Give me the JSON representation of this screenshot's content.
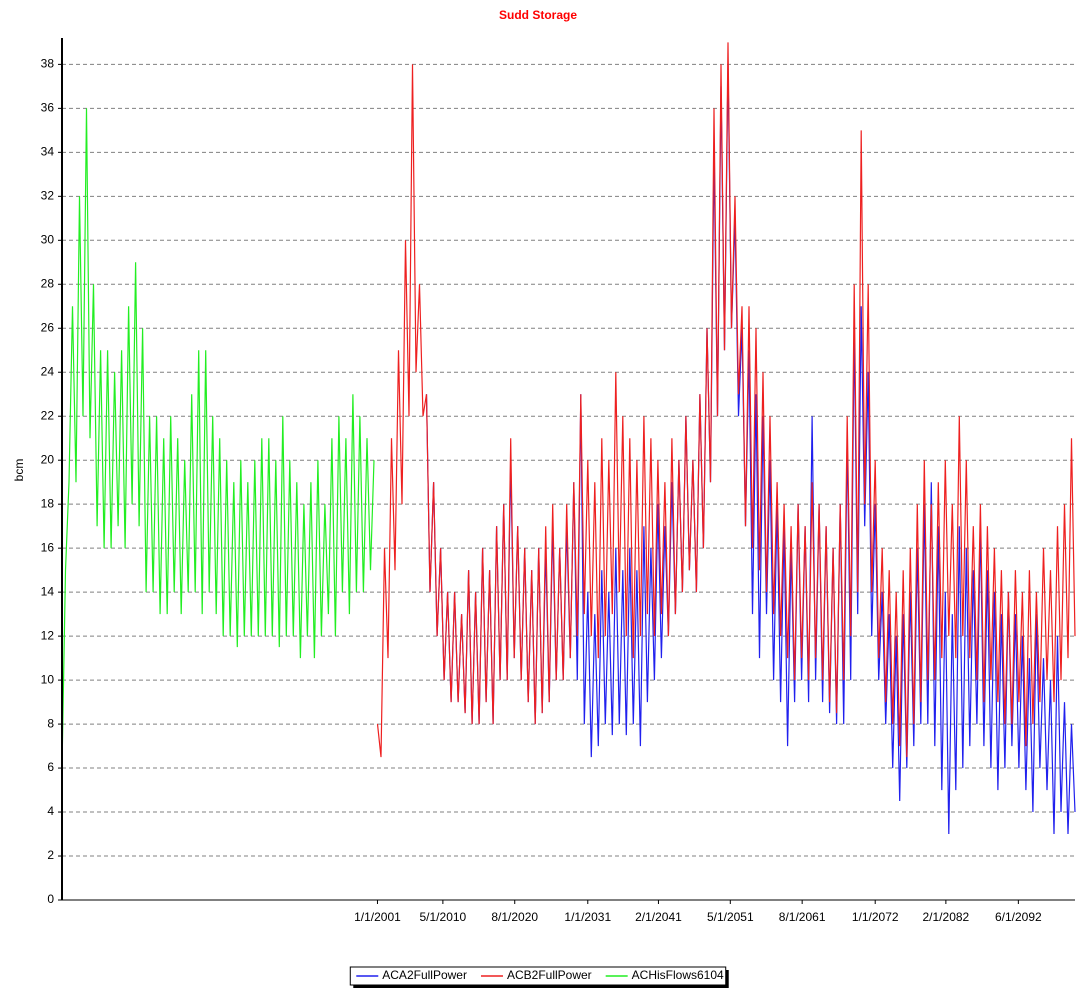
{
  "chart_data": {
    "type": "line",
    "title": "Sudd Storage",
    "y_label": "bcm",
    "title_color": "#ff0000",
    "x": [
      1956,
      1956.5,
      1957,
      1957.5,
      1958,
      1958.5,
      1959,
      1959.5,
      1960,
      1960.5,
      1961,
      1961.5,
      1962,
      1962.5,
      1963,
      1963.5,
      1964,
      1964.5,
      1965,
      1965.5,
      1966,
      1966.5,
      1967,
      1967.5,
      1968,
      1968.5,
      1969,
      1969.5,
      1970,
      1970.5,
      1971,
      1971.5,
      1972,
      1972.5,
      1973,
      1973.5,
      1974,
      1974.5,
      1975,
      1975.5,
      1976,
      1976.5,
      1977,
      1977.5,
      1978,
      1978.5,
      1979,
      1979.5,
      1980,
      1980.5,
      1981,
      1981.5,
      1982,
      1982.5,
      1983,
      1983.5,
      1984,
      1984.5,
      1985,
      1985.5,
      1986,
      1986.5,
      1987,
      1987.5,
      1988,
      1988.5,
      1989,
      1989.5,
      1990,
      1990.5,
      1991,
      1991.5,
      1992,
      1992.5,
      1993,
      1993.5,
      1994,
      1994.5,
      1995,
      1995.5,
      1996,
      1996.5,
      1997,
      1997.5,
      1998,
      1998.5,
      1999,
      1999.5,
      2000,
      2000.5,
      2001,
      2001.5,
      2002,
      2002.5,
      2003,
      2003.5,
      2004,
      2004.5,
      2005,
      2005.5,
      2006,
      2006.5,
      2007,
      2007.5,
      2008,
      2008.5,
      2009,
      2009.5,
      2010,
      2010.5,
      2011,
      2011.5,
      2012,
      2012.5,
      2013,
      2013.5,
      2014,
      2014.5,
      2015,
      2015.5,
      2016,
      2016.5,
      2017,
      2017.5,
      2018,
      2018.5,
      2019,
      2019.5,
      2020,
      2020.5,
      2021,
      2021.5,
      2022,
      2022.5,
      2023,
      2023.5,
      2024,
      2024.5,
      2025,
      2025.5,
      2026,
      2026.5,
      2027,
      2027.5,
      2028,
      2028.5,
      2029,
      2029.5,
      2030,
      2030.5,
      2031,
      2031.5,
      2032,
      2032.5,
      2033,
      2033.5,
      2034,
      2034.5,
      2035,
      2035.5,
      2036,
      2036.5,
      2037,
      2037.5,
      2038,
      2038.5,
      2039,
      2039.5,
      2040,
      2040.5,
      2041,
      2041.5,
      2042,
      2042.5,
      2043,
      2043.5,
      2044,
      2044.5,
      2045,
      2045.5,
      2046,
      2046.5,
      2047,
      2047.5,
      2048,
      2048.5,
      2049,
      2049.5,
      2050,
      2050.5,
      2051,
      2051.5,
      2052,
      2052.5,
      2053,
      2053.5,
      2054,
      2054.5,
      2055,
      2055.5,
      2056,
      2056.5,
      2057,
      2057.5,
      2058,
      2058.5,
      2059,
      2059.5,
      2060,
      2060.5,
      2061,
      2061.5,
      2062,
      2062.5,
      2063,
      2063.5,
      2064,
      2064.5,
      2065,
      2065.5,
      2066,
      2066.5,
      2067,
      2067.5,
      2068,
      2068.5,
      2069,
      2069.5,
      2070,
      2070.5,
      2071,
      2071.5,
      2072,
      2072.5,
      2073,
      2073.5,
      2074,
      2074.5,
      2075,
      2075.5,
      2076,
      2076.5,
      2077,
      2077.5,
      2078,
      2078.5,
      2079,
      2079.5,
      2080,
      2080.5,
      2081,
      2081.5,
      2082,
      2082.5,
      2083,
      2083.5,
      2084,
      2084.5,
      2085,
      2085.5,
      2086,
      2086.5,
      2087,
      2087.5,
      2088,
      2088.5,
      2089,
      2089.5,
      2090,
      2090.5,
      2091,
      2091.5,
      2092,
      2092.5,
      2093,
      2093.5,
      2094,
      2094.5,
      2095,
      2095.5,
      2096,
      2096.5,
      2097,
      2097.5,
      2098,
      2098.5,
      2099,
      2099.5,
      2100,
      2100.5
    ],
    "series": [
      {
        "name": "ACA2FullPower",
        "color": "#2020ee",
        "values": [
          null,
          null,
          null,
          null,
          null,
          null,
          null,
          null,
          null,
          null,
          null,
          null,
          null,
          null,
          null,
          null,
          null,
          null,
          null,
          null,
          null,
          null,
          null,
          null,
          null,
          null,
          null,
          null,
          null,
          null,
          null,
          null,
          null,
          null,
          null,
          null,
          null,
          null,
          null,
          null,
          null,
          null,
          null,
          null,
          null,
          null,
          null,
          null,
          null,
          null,
          null,
          null,
          null,
          null,
          null,
          null,
          null,
          null,
          null,
          null,
          null,
          null,
          null,
          null,
          null,
          null,
          null,
          null,
          null,
          null,
          null,
          null,
          null,
          null,
          null,
          null,
          null,
          null,
          null,
          null,
          null,
          null,
          null,
          null,
          null,
          null,
          null,
          null,
          null,
          null,
          null,
          null,
          null,
          null,
          null,
          null,
          null,
          null,
          null,
          null,
          null,
          null,
          null,
          null,
          23,
          14,
          19,
          12,
          16,
          10,
          14,
          9,
          14,
          9,
          13,
          8.5,
          15,
          8,
          14,
          8,
          16,
          9,
          15,
          8,
          17,
          10,
          18,
          10,
          20,
          11,
          17,
          10,
          16,
          9,
          15,
          8,
          16,
          8.5,
          16,
          9,
          17,
          10,
          16,
          10,
          17,
          11,
          19,
          10,
          23,
          8,
          14,
          6.5,
          13,
          7,
          15,
          8,
          14,
          7.5,
          16,
          8,
          15,
          7.5,
          16,
          8,
          15,
          7,
          17,
          9,
          16,
          10,
          18,
          11,
          17,
          12,
          19,
          13,
          20,
          14,
          22,
          15,
          20,
          14,
          23,
          16,
          26,
          19,
          34,
          22,
          37,
          25,
          38,
          26,
          31,
          22,
          26,
          17,
          25,
          13,
          23,
          11,
          22,
          13,
          20,
          10,
          18,
          9,
          17,
          7,
          16,
          9,
          18,
          10,
          17,
          9,
          22,
          10,
          18,
          9,
          17,
          8.5,
          16,
          8,
          18,
          8,
          21,
          10,
          26,
          13,
          27,
          17,
          24,
          12,
          18,
          10,
          14,
          8,
          13,
          6,
          12,
          4.5,
          13,
          6,
          14,
          7,
          16,
          8,
          18,
          8,
          19,
          7,
          17,
          5,
          14,
          3,
          13,
          5,
          17,
          6,
          16,
          7,
          15,
          8,
          17,
          7,
          15,
          6,
          14,
          5,
          13,
          6,
          14,
          7,
          13,
          6,
          12,
          5,
          11,
          4,
          13,
          6,
          11,
          5,
          10,
          3,
          12,
          4,
          9,
          3,
          8,
          4
        ]
      },
      {
        "name": "ACB2FullPower",
        "color": "#ee2020",
        "values": [
          null,
          null,
          null,
          null,
          null,
          null,
          null,
          null,
          null,
          null,
          null,
          null,
          null,
          null,
          null,
          null,
          null,
          null,
          null,
          null,
          null,
          null,
          null,
          null,
          null,
          null,
          null,
          null,
          null,
          null,
          null,
          null,
          null,
          null,
          null,
          null,
          null,
          null,
          null,
          null,
          null,
          null,
          null,
          null,
          null,
          null,
          null,
          null,
          null,
          null,
          null,
          null,
          null,
          null,
          null,
          null,
          null,
          null,
          null,
          null,
          null,
          null,
          null,
          null,
          null,
          null,
          null,
          null,
          null,
          null,
          null,
          null,
          null,
          null,
          null,
          null,
          null,
          null,
          null,
          null,
          null,
          null,
          null,
          null,
          null,
          null,
          null,
          null,
          null,
          null,
          8,
          6.5,
          16,
          11,
          21,
          15,
          25,
          18,
          30,
          22,
          38,
          24,
          28,
          22,
          23,
          14,
          19,
          12,
          16,
          10,
          14,
          9,
          14,
          9,
          13,
          8.5,
          15,
          8,
          14,
          8,
          16,
          9,
          15,
          8,
          17,
          10,
          18,
          10,
          21,
          11,
          17,
          10,
          16,
          9,
          15,
          8,
          16,
          8.5,
          17,
          9,
          18,
          10,
          16,
          10,
          18,
          11,
          19,
          12,
          23,
          13,
          20,
          12,
          19,
          11,
          21,
          12,
          20,
          13,
          24,
          14,
          22,
          12,
          21,
          11,
          20,
          12,
          22,
          13,
          21,
          12,
          20,
          13,
          19,
          12,
          21,
          13,
          20,
          14,
          22,
          15,
          20,
          14,
          23,
          16,
          26,
          19,
          36,
          22,
          38,
          25,
          39,
          26,
          32,
          23,
          27,
          17,
          27,
          16,
          26,
          15,
          24,
          14,
          22,
          13,
          19,
          12,
          18,
          11,
          17,
          10,
          18,
          11,
          17,
          10,
          19,
          11,
          18,
          10,
          17,
          9,
          16,
          8.5,
          18,
          10,
          22,
          12,
          28,
          14,
          35,
          18,
          28,
          14,
          20,
          11,
          16,
          9,
          15,
          8,
          14,
          7,
          15,
          6.5,
          16,
          8,
          18,
          9,
          20,
          10,
          18,
          10,
          19,
          11,
          20,
          12,
          18,
          11,
          22,
          12,
          20,
          11,
          17,
          10,
          18,
          9,
          17,
          10,
          16,
          9,
          15,
          8,
          14,
          8,
          15,
          9,
          14,
          7,
          15,
          8,
          14,
          9,
          16,
          10,
          15,
          9,
          17,
          10,
          18,
          11,
          21,
          12
        ]
      },
      {
        "name": "ACHisFlows6104",
        "color": "#22ee22",
        "values": [
          6,
          15,
          19,
          27,
          19,
          32,
          22,
          36,
          21,
          28,
          17,
          25,
          16,
          25,
          16,
          24,
          17,
          25,
          16,
          27,
          18,
          29,
          17,
          26,
          14,
          22,
          14,
          22,
          13,
          21,
          13,
          22,
          14,
          21,
          13,
          20,
          14,
          23,
          14,
          25,
          13,
          25,
          14,
          22,
          13,
          21,
          12,
          20,
          12,
          19,
          11.5,
          20,
          12,
          19,
          12,
          20,
          12,
          21,
          12,
          21,
          12,
          20,
          11.5,
          22,
          12,
          20,
          12,
          19,
          11,
          18,
          12,
          19,
          11,
          20,
          12,
          18,
          13,
          21,
          12,
          22,
          14,
          21,
          13,
          23,
          14,
          22,
          14,
          21,
          15,
          20,
          null,
          null,
          null,
          null,
          null,
          null,
          null,
          null,
          null,
          null,
          null,
          null,
          null,
          null,
          null,
          null,
          null,
          null,
          null,
          null,
          null,
          null,
          null,
          null,
          null,
          null,
          null,
          null,
          null,
          null,
          null,
          null,
          null,
          null,
          null,
          null,
          null,
          null,
          null,
          null,
          null,
          null,
          null,
          null,
          null,
          null,
          null,
          null,
          null,
          null,
          null,
          null,
          null,
          null,
          null,
          null,
          null,
          null,
          null,
          null,
          null,
          null,
          null,
          null,
          null,
          null,
          null,
          null,
          null,
          null,
          null,
          null,
          null,
          null,
          null,
          null,
          null,
          null,
          null,
          null,
          null,
          null,
          null,
          null,
          null,
          null,
          null,
          null,
          null,
          null,
          null,
          null,
          null,
          null,
          null,
          null,
          null,
          null,
          null,
          null,
          null,
          null,
          null,
          null,
          null,
          null,
          null,
          null,
          null,
          null,
          null,
          null,
          null,
          null,
          null,
          null,
          null,
          null,
          null,
          null,
          null,
          null,
          null,
          null,
          null,
          null,
          null,
          null,
          null,
          null,
          null,
          null,
          null,
          null,
          null,
          null,
          null,
          null,
          null,
          null,
          null,
          null,
          null,
          null,
          null,
          null,
          null,
          null,
          null,
          null,
          null,
          null,
          null,
          null,
          null,
          null,
          null,
          null,
          null,
          null,
          null,
          null,
          null,
          null,
          null,
          null,
          null,
          null,
          null,
          null,
          null,
          null,
          null,
          null,
          null,
          null,
          null,
          null,
          null,
          null,
          null,
          null,
          null,
          null,
          null,
          null,
          null,
          null,
          null,
          null,
          null,
          null,
          null,
          null,
          null,
          null,
          null,
          null,
          null,
          null
        ]
      }
    ],
    "xlim": [
      1956,
      2100.5
    ],
    "xticks": [
      {
        "value": 2001,
        "label": "1/1/2001"
      },
      {
        "value": 2010.33,
        "label": "5/1/2010"
      },
      {
        "value": 2020.58,
        "label": "8/1/2020"
      },
      {
        "value": 2031,
        "label": "1/1/2031"
      },
      {
        "value": 2041.08,
        "label": "2/1/2041"
      },
      {
        "value": 2051.33,
        "label": "5/1/2051"
      },
      {
        "value": 2061.58,
        "label": "8/1/2061"
      },
      {
        "value": 2072,
        "label": "1/1/2072"
      },
      {
        "value": 2082.08,
        "label": "2/1/2082"
      },
      {
        "value": 2092.42,
        "label": "6/1/2092"
      }
    ],
    "ylim": [
      0,
      39.2
    ],
    "yticks": [
      0,
      2,
      4,
      6,
      8,
      10,
      12,
      14,
      16,
      18,
      20,
      22,
      24,
      26,
      28,
      30,
      32,
      34,
      36,
      38
    ],
    "grid": true,
    "legend": "bottom"
  }
}
